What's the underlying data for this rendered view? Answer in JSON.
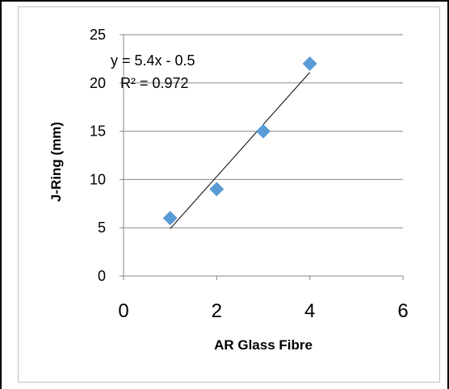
{
  "chart_data": {
    "type": "scatter",
    "title": "",
    "xlabel": "AR Glass Fibre",
    "ylabel": "J-Ring (mm)",
    "xlim": [
      0,
      6
    ],
    "ylim": [
      0,
      25
    ],
    "x_ticks": [
      "0",
      "2",
      "4",
      "6"
    ],
    "y_ticks": [
      "0",
      "5",
      "10",
      "15",
      "20",
      "25"
    ],
    "grid": "horizontal",
    "legend": "none",
    "series": [
      {
        "marker": "diamond",
        "color": "#5b9bd5",
        "points": [
          {
            "x": 1,
            "y": 6
          },
          {
            "x": 2,
            "y": 9
          },
          {
            "x": 3,
            "y": 15
          },
          {
            "x": 4,
            "y": 22
          }
        ]
      }
    ],
    "trendline": {
      "type": "linear",
      "slope": 5.4,
      "intercept": -0.5,
      "x_range": [
        1,
        4
      ],
      "color": "#000000",
      "equation_label": "y = 5.4x - 0.5",
      "r2_label": "R² = 0.972"
    }
  }
}
